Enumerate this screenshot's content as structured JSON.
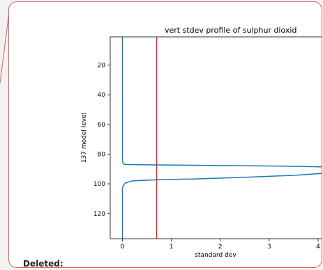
{
  "chart_data": {
    "type": "line",
    "title": "vert stdev profile of sulphur dioxid",
    "xlabel": "standard dev",
    "ylabel": "137 model level",
    "xlim": [
      -0.25,
      4.1
    ],
    "ylim": [
      137,
      1
    ],
    "x_ticks": [
      "0",
      "1",
      "2",
      "3",
      "4"
    ],
    "y_ticks": [
      "20",
      "40",
      "60",
      "80",
      "100",
      "120"
    ],
    "grid": false,
    "series": [
      {
        "color": "#1f77b4",
        "points": [
          [
            0.0,
            1
          ],
          [
            0.0,
            70
          ],
          [
            0.0,
            84
          ],
          [
            0.01,
            86
          ],
          [
            0.05,
            87
          ],
          [
            0.7,
            87.3
          ],
          [
            2.0,
            87.7
          ],
          [
            3.5,
            88.2
          ],
          [
            4.1,
            88.6
          ],
          [
            4.1,
            93.0
          ],
          [
            3.5,
            94.3
          ],
          [
            2.5,
            95.6
          ],
          [
            1.5,
            96.7
          ],
          [
            0.7,
            97.3
          ],
          [
            0.2,
            98.0
          ],
          [
            0.06,
            99.5
          ],
          [
            0.02,
            101
          ],
          [
            0.0,
            103
          ],
          [
            0.0,
            137
          ]
        ]
      }
    ],
    "vline": {
      "x": 0.7,
      "color": "#d62728"
    }
  },
  "annotation": {
    "label": "Deleted:"
  },
  "colors": {
    "border": "#e06060",
    "axis": "#000000"
  }
}
